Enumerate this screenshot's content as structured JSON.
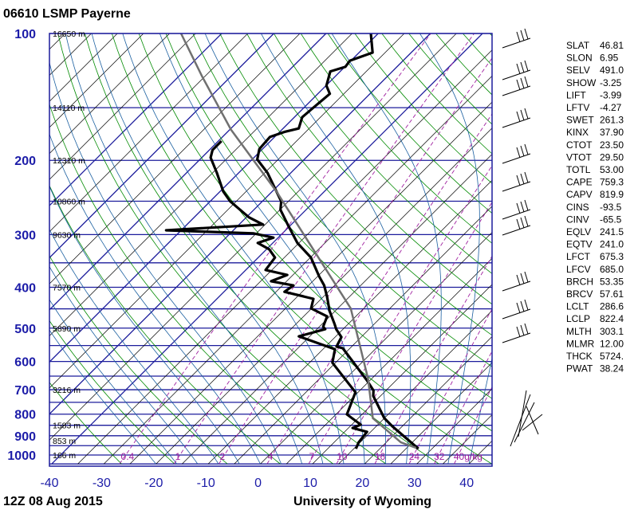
{
  "header": {
    "title": "06610 LSMP Payerne"
  },
  "footer": {
    "datetime": "12Z 08 Aug 2015",
    "source": "University of Wyoming"
  },
  "colors": {
    "isobar": "#1c1c9c",
    "isotherm": "#000000",
    "dry_adiabat": "#008a00",
    "moist_adiabat": "#1a5fa0",
    "mixing_ratio": "#a020a0",
    "temperature": "#000000",
    "dewpoint": "#000000",
    "parcel": "#707070",
    "axis_labels": "#1c1ca8"
  },
  "chart_data": {
    "type": "line",
    "subtype": "skew-t log-p",
    "y_scale": "log",
    "ylim": [
      1050,
      100
    ],
    "xlim": [
      -40,
      45
    ],
    "y_ticks": [
      "100",
      "200",
      "300",
      "400",
      "500",
      "600",
      "700",
      "800",
      "900",
      "1000"
    ],
    "x_ticks": [
      "-40",
      "-30",
      "-20",
      "-10",
      "0",
      "10",
      "20",
      "30",
      "40"
    ],
    "height_labels": [
      {
        "p": 100,
        "label": "16650 m"
      },
      {
        "p": 150,
        "label": "14110 m"
      },
      {
        "p": 200,
        "label": "12310 m"
      },
      {
        "p": 250,
        "label": "10860 m"
      },
      {
        "p": 300,
        "label": "9630 m"
      },
      {
        "p": 400,
        "label": "7570 m"
      },
      {
        "p": 500,
        "label": "5890 m"
      },
      {
        "p": 700,
        "label": "3216 m"
      },
      {
        "p": 850,
        "label": "1583 m"
      },
      {
        "p": 925,
        "label": "853 m"
      },
      {
        "p": 1000,
        "label": "166 m"
      }
    ],
    "mixing_ratio_labels": [
      {
        "w": 0.4,
        "label": "0.4"
      },
      {
        "w": 1,
        "label": "1"
      },
      {
        "w": 2,
        "label": "2"
      },
      {
        "w": 4,
        "label": "4"
      },
      {
        "w": 7,
        "label": "7"
      },
      {
        "w": 10,
        "label": "10"
      },
      {
        "w": 16,
        "label": "16"
      },
      {
        "w": 24,
        "label": "24"
      },
      {
        "w": 32,
        "label": "32"
      },
      {
        "w": 40,
        "label": "40g/kg"
      }
    ],
    "series": [
      {
        "key": "temperature",
        "points": [
          [
            966,
            27.4
          ],
          [
            855,
            18.1
          ],
          [
            818,
            15.0
          ],
          [
            724,
            8.6
          ],
          [
            703,
            7.6
          ],
          [
            664,
            4.3
          ],
          [
            558,
            -6.4
          ],
          [
            553,
            -7.9
          ],
          [
            525,
            -8.8
          ],
          [
            503,
            -11.3
          ],
          [
            490,
            -12.5
          ],
          [
            455,
            -16.1
          ],
          [
            422,
            -19.2
          ],
          [
            396,
            -22.0
          ],
          [
            377,
            -24.7
          ],
          [
            340,
            -29.9
          ],
          [
            314,
            -35.3
          ],
          [
            286,
            -40.3
          ],
          [
            262,
            -44.9
          ],
          [
            250,
            -46.4
          ],
          [
            237,
            -49.2
          ],
          [
            214,
            -54.5
          ],
          [
            199,
            -59.0
          ],
          [
            188,
            -60.6
          ],
          [
            176,
            -60.9
          ],
          [
            171,
            -59.0
          ],
          [
            168,
            -57.0
          ],
          [
            158,
            -58.5
          ],
          [
            150,
            -58.2
          ],
          [
            139,
            -57.7
          ],
          [
            133,
            -59.9
          ],
          [
            123,
            -61.9
          ],
          [
            120,
            -59.9
          ],
          [
            116,
            -60.2
          ],
          [
            111,
            -57.4
          ],
          [
            100,
            -61.4
          ]
        ]
      },
      {
        "key": "dewpoint",
        "points": [
          [
            966,
            15.4
          ],
          [
            933,
            14.7
          ],
          [
            881,
            14.3
          ],
          [
            863,
            10.8
          ],
          [
            847,
            11.7
          ],
          [
            801,
            7.1
          ],
          [
            710,
            4.5
          ],
          [
            604,
            -5.6
          ],
          [
            561,
            -7.7
          ],
          [
            523,
            -17.1
          ],
          [
            503,
            -13.4
          ],
          [
            496,
            -14.3
          ],
          [
            469,
            -15.5
          ],
          [
            449,
            -20.1
          ],
          [
            426,
            -21.5
          ],
          [
            410,
            -28.4
          ],
          [
            396,
            -27.9
          ],
          [
            387,
            -33.0
          ],
          [
            374,
            -31.1
          ],
          [
            364,
            -36.2
          ],
          [
            340,
            -36.8
          ],
          [
            325,
            -39.5
          ],
          [
            314,
            -42.9
          ],
          [
            305,
            -40.9
          ],
          [
            298,
            -45.5
          ],
          [
            293,
            -62.9
          ],
          [
            284,
            -45.4
          ],
          [
            273,
            -49.5
          ],
          [
            250,
            -56.2
          ],
          [
            237,
            -59.4
          ],
          [
            214,
            -64.2
          ],
          [
            197,
            -68.3
          ],
          [
            189,
            -69.4
          ],
          [
            180,
            -69.4
          ]
        ]
      },
      {
        "key": "parcel",
        "points": [
          [
            962,
            26.8
          ],
          [
            933,
            22.8
          ],
          [
            818,
            12.8
          ],
          [
            659,
            4.3
          ],
          [
            449,
            -12.5
          ],
          [
            237,
            -49.2
          ],
          [
            169,
            -69.8
          ],
          [
            126,
            -85.7
          ],
          [
            100,
            -97.8
          ]
        ]
      }
    ]
  },
  "stats": [
    {
      "label": "SLAT",
      "value": "46.81"
    },
    {
      "label": "SLON",
      "value": "6.95"
    },
    {
      "label": "SELV",
      "value": "491.0"
    },
    {
      "label": "SHOW",
      "value": "-3.25"
    },
    {
      "label": "LIFT",
      "value": "-3.99"
    },
    {
      "label": "LFTV",
      "value": "-4.27"
    },
    {
      "label": "SWET",
      "value": "261.3"
    },
    {
      "label": "KINX",
      "value": "37.90"
    },
    {
      "label": "CTOT",
      "value": "23.50"
    },
    {
      "label": "VTOT",
      "value": "29.50"
    },
    {
      "label": "TOTL",
      "value": "53.00"
    },
    {
      "label": "CAPE",
      "value": "759.3"
    },
    {
      "label": "CAPV",
      "value": "819.9"
    },
    {
      "label": "CINS",
      "value": "-93.5"
    },
    {
      "label": "CINV",
      "value": "-65.5"
    },
    {
      "label": "EQLV",
      "value": "241.5"
    },
    {
      "label": "EQTV",
      "value": "241.0"
    },
    {
      "label": "LFCT",
      "value": "675.3"
    },
    {
      "label": "LFCV",
      "value": "685.0"
    },
    {
      "label": "BRCH",
      "value": "53.35"
    },
    {
      "label": "BRCV",
      "value": "57.61"
    },
    {
      "label": "LCLT",
      "value": "286.6"
    },
    {
      "label": "LCLP",
      "value": "822.4"
    },
    {
      "label": "MLTH",
      "value": "303.1"
    },
    {
      "label": "MLMR",
      "value": "12.00"
    },
    {
      "label": "THCK",
      "value": "5724."
    },
    {
      "label": "PWAT",
      "value": "38.24"
    }
  ]
}
